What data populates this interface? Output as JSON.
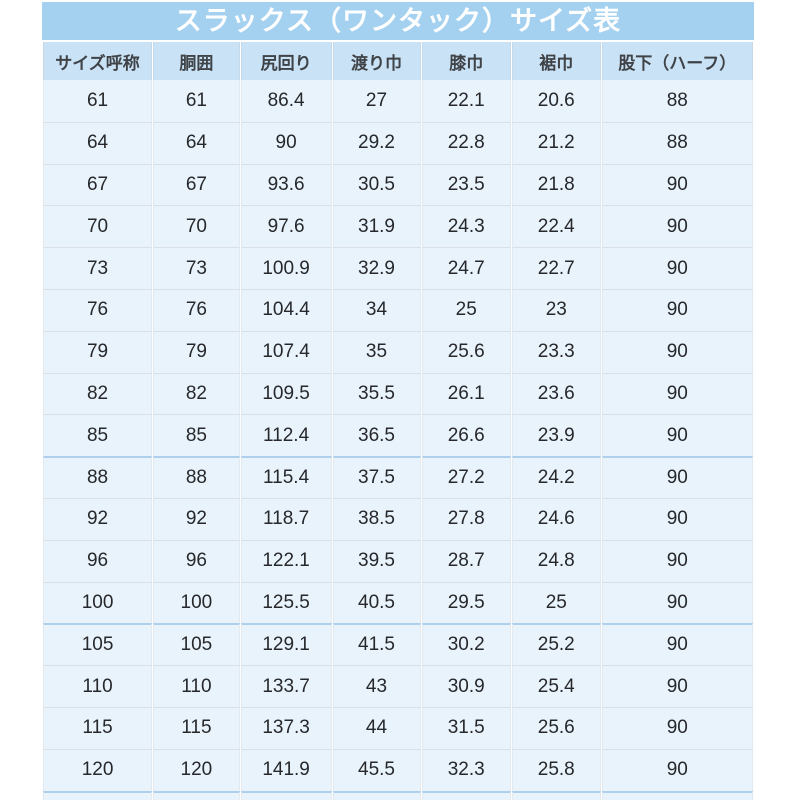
{
  "chart_data": {
    "type": "table",
    "title": "スラックス（ワンタック）サイズ表",
    "columns": [
      "サイズ呼称",
      "胴囲",
      "尻回り",
      "渡り巾",
      "膝巾",
      "裾巾",
      "股下（ハーフ）"
    ],
    "rows": [
      [
        "61",
        "61",
        "86.4",
        "27",
        "22.1",
        "20.6",
        "88"
      ],
      [
        "64",
        "64",
        "90",
        "29.2",
        "22.8",
        "21.2",
        "88"
      ],
      [
        "67",
        "67",
        "93.6",
        "30.5",
        "23.5",
        "21.8",
        "90"
      ],
      [
        "70",
        "70",
        "97.6",
        "31.9",
        "24.3",
        "22.4",
        "90"
      ],
      [
        "73",
        "73",
        "100.9",
        "32.9",
        "24.7",
        "22.7",
        "90"
      ],
      [
        "76",
        "76",
        "104.4",
        "34",
        "25",
        "23",
        "90"
      ],
      [
        "79",
        "79",
        "107.4",
        "35",
        "25.6",
        "23.3",
        "90"
      ],
      [
        "82",
        "82",
        "109.5",
        "35.5",
        "26.1",
        "23.6",
        "90"
      ],
      [
        "85",
        "85",
        "112.4",
        "36.5",
        "26.6",
        "23.9",
        "90"
      ],
      [
        "88",
        "88",
        "115.4",
        "37.5",
        "27.2",
        "24.2",
        "90"
      ],
      [
        "92",
        "92",
        "118.7",
        "38.5",
        "27.8",
        "24.6",
        "90"
      ],
      [
        "96",
        "96",
        "122.1",
        "39.5",
        "28.7",
        "24.8",
        "90"
      ],
      [
        "100",
        "100",
        "125.5",
        "40.5",
        "29.5",
        "25",
        "90"
      ],
      [
        "105",
        "105",
        "129.1",
        "41.5",
        "30.2",
        "25.2",
        "90"
      ],
      [
        "110",
        "110",
        "133.7",
        "43",
        "30.9",
        "25.4",
        "90"
      ],
      [
        "115",
        "115",
        "137.3",
        "44",
        "31.5",
        "25.6",
        "90"
      ],
      [
        "120",
        "120",
        "141.9",
        "45.5",
        "32.3",
        "25.8",
        "90"
      ]
    ],
    "group_start_rows": [
      9,
      13
    ],
    "partial_cutoff_row_at_bottom": true,
    "legend_position": "none",
    "grid": "on"
  },
  "colors": {
    "title_bar_bg": "#a5d1f0",
    "title_text": "#ffffff",
    "header_bg": "#c9e2f5",
    "header_text": "#3f4347",
    "row_bg": "#e9f3fb",
    "body_text": "#26282b",
    "group_separator": "#aed0ec",
    "grid_line": "#d9dfe5",
    "page_bg": "#ffffff"
  }
}
